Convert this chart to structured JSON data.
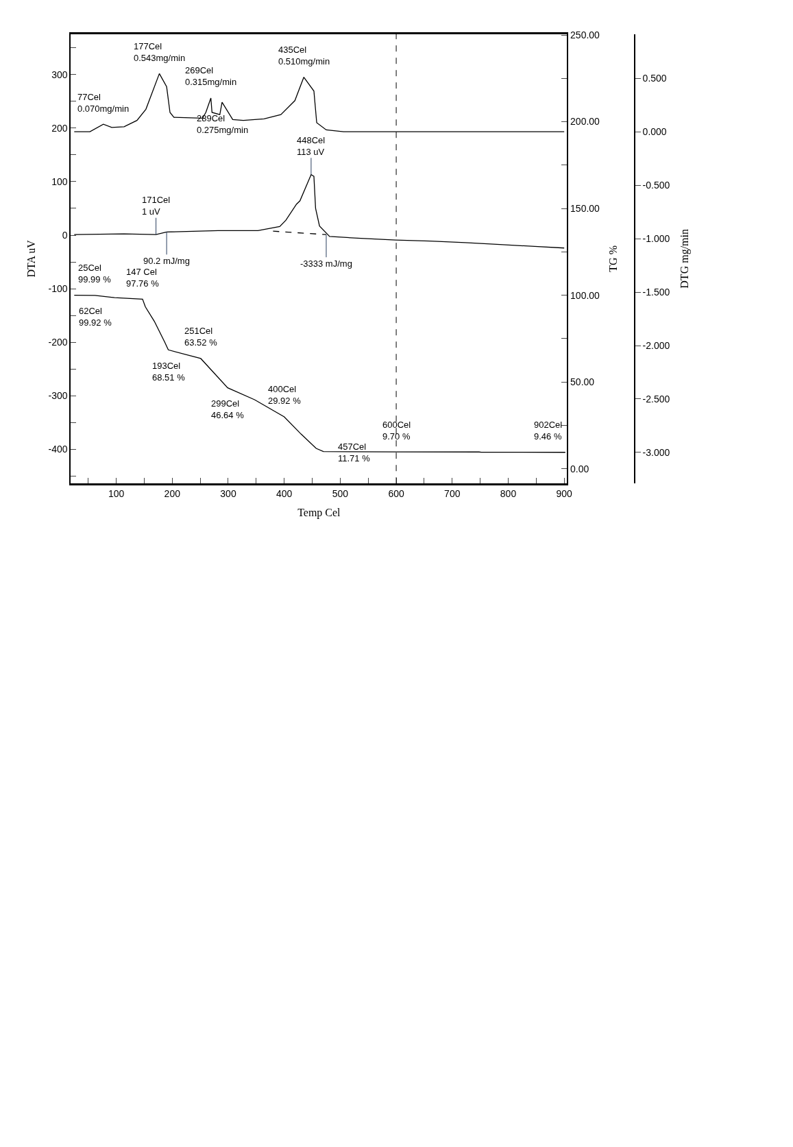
{
  "chart_data": {
    "type": "line",
    "xlabel": "Temp Cel",
    "ylabel": "DTA uV",
    "y2label": "TG %",
    "y3label": "DTG mg/min",
    "xlim": [
      19,
      905
    ],
    "xticks": [
      {
        "value": 50,
        "label": null
      },
      100,
      {
        "value": 150,
        "label": null
      },
      200,
      {
        "value": 250,
        "label": null
      },
      300,
      {
        "value": 350,
        "label": null
      },
      400,
      {
        "value": 450,
        "label": null
      },
      500,
      {
        "value": 550,
        "label": null
      },
      600,
      {
        "value": 650,
        "label": null
      },
      700,
      {
        "value": 750,
        "label": null
      },
      800,
      {
        "value": 850,
        "label": null
      },
      900
    ],
    "ylim": [
      -464,
      376
    ],
    "yticks": [
      {
        "value": -450,
        "label": null
      },
      -400,
      {
        "value": -350,
        "label": null
      },
      -300,
      {
        "value": -250,
        "label": null
      },
      -200,
      {
        "value": -150,
        "label": null
      },
      -100,
      {
        "value": -50,
        "label": null
      },
      0,
      {
        "value": 50,
        "label": null
      },
      100,
      {
        "value": 150,
        "label": null
      },
      200,
      {
        "value": 250,
        "label": null
      },
      300,
      {
        "value": 350,
        "label": null
      }
    ],
    "y2lim": [
      -8.5,
      250.6
    ],
    "y2ticks": [
      {
        "value": 0,
        "label": "0.00"
      },
      {
        "value": 25,
        "label": null
      },
      {
        "value": 50,
        "label": "50.00"
      },
      {
        "value": 75,
        "label": null
      },
      {
        "value": 100,
        "label": "100.00"
      },
      {
        "value": 125,
        "label": null
      },
      {
        "value": 150,
        "label": "150.00"
      },
      {
        "value": 175,
        "label": null
      },
      {
        "value": 200,
        "label": "200.00"
      },
      {
        "value": 225,
        "label": null
      },
      {
        "value": 250,
        "label": "250.00"
      }
    ],
    "y3lim": [
      -3.29,
      0.914
    ],
    "y3ticks": [
      {
        "value": -3,
        "label": "-3.000"
      },
      {
        "value": -2.5,
        "label": "-2.500"
      },
      {
        "value": -2,
        "label": "-2.000"
      },
      {
        "value": -1.5,
        "label": "-1.500"
      },
      {
        "value": -1,
        "label": "-1.000"
      },
      {
        "value": -0.5,
        "label": "-0.500"
      },
      {
        "value": 0,
        "label": "0.000"
      },
      {
        "value": 0.5,
        "label": "0.500"
      }
    ],
    "series": [
      {
        "axis": "y3",
        "color": "#000000",
        "x": [
          25,
          32,
          53,
          77,
          92,
          114,
          137,
          153,
          177,
          190,
          196,
          203,
          254,
          260,
          269,
          271,
          285,
          289,
          308,
          327,
          364,
          394,
          419,
          435,
          453,
          458,
          475,
          506,
          723,
          900
        ],
        "values": [
          0.0,
          0.0,
          0.0,
          0.07,
          0.04,
          0.046,
          0.105,
          0.21,
          0.543,
          0.42,
          0.18,
          0.134,
          0.126,
          0.18,
          0.315,
          0.18,
          0.16,
          0.275,
          0.113,
          0.105,
          0.12,
          0.16,
          0.29,
          0.51,
          0.38,
          0.084,
          0.017,
          0.0,
          0.0,
          0.0
        ]
      },
      {
        "axis": "y",
        "color": "#000000",
        "x": [
          25,
          114,
          171,
          190,
          282,
          353,
          392,
          403,
          422,
          428,
          448,
          453,
          456,
          463,
          481,
          537,
          599,
          661,
          723,
          785,
          847,
          900
        ],
        "values": [
          1.2,
          2.5,
          1,
          6,
          8.4,
          8.4,
          16,
          28,
          58,
          64,
          113,
          110,
          50,
          17,
          -2.5,
          -6,
          -9,
          -11,
          -14,
          -17.5,
          -21,
          -24
        ]
      },
      {
        "axis": "y",
        "color": "#000000",
        "line_style": "dashed",
        "x": [
          380,
          475
        ],
        "values": [
          7.5,
          1
        ]
      },
      {
        "axis": "y2",
        "color": "#000000",
        "x": [
          25,
          62,
          97,
          147,
          152,
          168,
          187,
          193,
          251,
          299,
          347,
          400,
          430,
          457,
          470,
          600,
          748,
          752,
          902
        ],
        "values": [
          99.99,
          99.92,
          98.6,
          97.76,
          93.3,
          85,
          72.7,
          68.51,
          63.52,
          46.64,
          39.8,
          29.92,
          20,
          11.71,
          9.9,
          9.7,
          9.65,
          9.5,
          9.46
        ]
      }
    ],
    "ref_lines": [
      {
        "axis": "x",
        "value": 600,
        "line_style": "dashed",
        "color": "#000000"
      }
    ],
    "annotations": [
      "77Cel\n0.070mg/min",
      "177Cel\n0.543mg/min",
      "269Cel\n0.315mg/min",
      "289Cel\n0.275mg/min",
      "435Cel\n0.510mg/min",
      {
        "text": "171Cel\n1 uV",
        "x": 171,
        "y": 1
      },
      {
        "text": "448Cel\n113 uV",
        "x": 448,
        "y": 113
      },
      {
        "text": "90.2 mJ/mg",
        "x": 190,
        "y": 6
      },
      {
        "text": "-3333 mJ/mg",
        "x": 475,
        "y": 1
      },
      "25Cel\n99.99 %",
      "62Cel\n99.92 %",
      "147 Cel\n97.76 %",
      "193Cel\n68.51 %",
      "251Cel\n63.52 %",
      "299Cel\n46.64 %",
      "400Cel\n29.92 %",
      "457Cel\n11.71 %",
      "600Cel\n9.70 %",
      "902Cel\n9.46 %"
    ]
  }
}
